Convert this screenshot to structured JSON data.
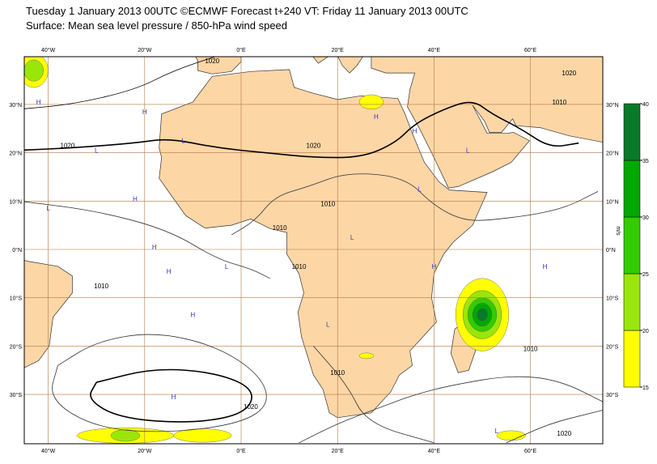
{
  "header": {
    "title": "Tuesday 1 January 2013 00UTC ©ECMWF Forecast t+240 VT: Friday 11 January 2013 00UTC",
    "subtitle": "Surface: Mean sea level pressure / 850-hPa wind speed"
  },
  "map": {
    "lon_labels": [
      {
        "value": -40,
        "label": "40°W"
      },
      {
        "value": -20,
        "label": "20°W"
      },
      {
        "value": 0,
        "label": "0°E"
      },
      {
        "value": 20,
        "label": "20°E"
      },
      {
        "value": 40,
        "label": "40°E"
      },
      {
        "value": 60,
        "label": "60°E"
      }
    ],
    "lat_labels": [
      {
        "value": 30,
        "label": "30°N"
      },
      {
        "value": 20,
        "label": "20°N"
      },
      {
        "value": 10,
        "label": "10°N"
      },
      {
        "value": 0,
        "label": "0°N"
      },
      {
        "value": -10,
        "label": "10°S"
      },
      {
        "value": -20,
        "label": "20°S"
      },
      {
        "value": -30,
        "label": "30°S"
      }
    ],
    "isobar_labels": [
      "1020",
      "1020",
      "1020",
      "1010",
      "1010",
      "1010",
      "1010",
      "1010",
      "1020",
      "1020",
      "1010",
      "1010",
      "1020"
    ],
    "markers": [
      "H",
      "H",
      "L",
      "L",
      "H",
      "L",
      "H",
      "L",
      "H",
      "H",
      "L",
      "L",
      "H",
      "H",
      "L",
      "L",
      "H",
      "H",
      "H",
      "L"
    ]
  },
  "colorbar": {
    "ticks": [
      15,
      20,
      25,
      30,
      35,
      40
    ],
    "colors": [
      "#ffff00",
      "#9be60a",
      "#33cc00",
      "#00a800",
      "#087a2a"
    ],
    "unit": "m/s"
  }
}
